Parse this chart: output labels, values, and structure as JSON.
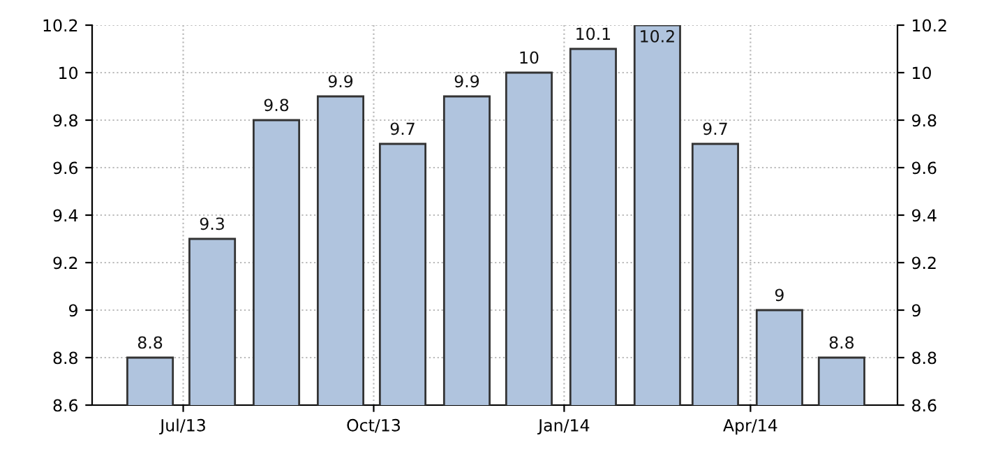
{
  "chart_data": {
    "type": "bar",
    "x": [
      "2013-06-15",
      "2013-07-15",
      "2013-08-15",
      "2013-09-15",
      "2013-10-15",
      "2013-11-15",
      "2013-12-15",
      "2014-01-15",
      "2014-02-15",
      "2014-03-15",
      "2014-04-15",
      "2014-05-15"
    ],
    "values": [
      8.8,
      9.3,
      9.8,
      9.9,
      9.7,
      9.9,
      10,
      10.1,
      10.2,
      9.7,
      9,
      8.8
    ],
    "color": "#b0c4de",
    "data_labels": true,
    "xlim": [
      "2013-05-18",
      "2014-06-11"
    ],
    "xticks": [
      {
        "value": "2013-07-01",
        "label": "Jul/13"
      },
      {
        "value": "2013-10-01",
        "label": "Oct/13"
      },
      {
        "value": "2014-01-01",
        "label": "Jan/14"
      },
      {
        "value": "2014-04-01",
        "label": "Apr/14"
      }
    ],
    "ylim": [
      8.6,
      10.2
    ],
    "yticks": [
      8.6,
      8.8,
      9,
      9.2,
      9.4,
      9.6,
      9.8,
      10,
      10.2
    ],
    "y2lim": [
      8.6,
      10.2
    ],
    "y2ticks": [
      8.6,
      8.8,
      9,
      9.2,
      9.4,
      9.6,
      9.8,
      10,
      10.2
    ],
    "grid": true
  }
}
